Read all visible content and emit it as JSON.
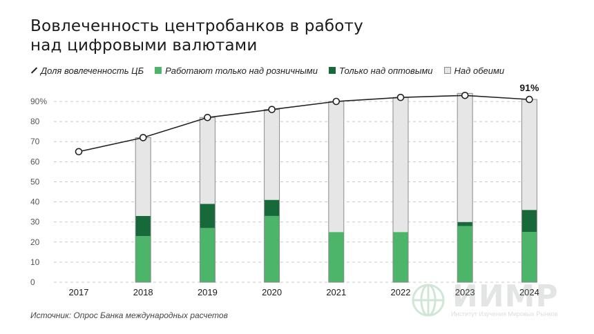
{
  "title_lines": [
    "Вовлеченность центробанков в работу",
    "над цифровыми валютами"
  ],
  "legend": {
    "line_label": "Доля вовлеченность ЦБ",
    "retail_label": "Работают только над розничными",
    "wholesale_label": "Только над оптовыми",
    "both_label": "Над обеими"
  },
  "colors": {
    "retail": "#4cb56a",
    "wholesale": "#17693a",
    "both": "#e6e6e6",
    "bar_border": "#8a8a8a",
    "line": "#222222"
  },
  "source": "Источник: Опрос Банка международных расчетов",
  "logo": {
    "text": "ИИМР",
    "subtitle": "Институт Изучения Мировых Рынков"
  },
  "chart_data": {
    "type": "bar",
    "stacked": true,
    "categories": [
      "2017",
      "2018",
      "2019",
      "2020",
      "2021",
      "2022",
      "2023",
      "2024"
    ],
    "series": [
      {
        "name": "Работают только над розничными",
        "values": [
          null,
          23,
          27,
          33,
          25,
          25,
          28,
          25
        ]
      },
      {
        "name": "Только над оптовыми",
        "values": [
          null,
          10,
          12,
          8,
          0,
          0,
          2,
          11
        ]
      },
      {
        "name": "Над обеими",
        "values": [
          null,
          39,
          43,
          45,
          65,
          67,
          64,
          55
        ]
      }
    ],
    "line": {
      "name": "Доля вовлеченность ЦБ",
      "values": [
        65,
        72,
        82,
        86,
        90,
        92,
        93,
        91
      ]
    },
    "annotations": [
      {
        "category": "2024",
        "text": "91%"
      }
    ],
    "ylim": [
      0,
      90
    ],
    "yticks": [
      0,
      10,
      20,
      30,
      40,
      50,
      60,
      70,
      80,
      90
    ],
    "ytick_labels": [
      "0",
      "10",
      "20",
      "30",
      "40",
      "50",
      "60",
      "70",
      "80",
      "90%"
    ],
    "grid": "dashed-horizontal",
    "legend_position": "top"
  }
}
